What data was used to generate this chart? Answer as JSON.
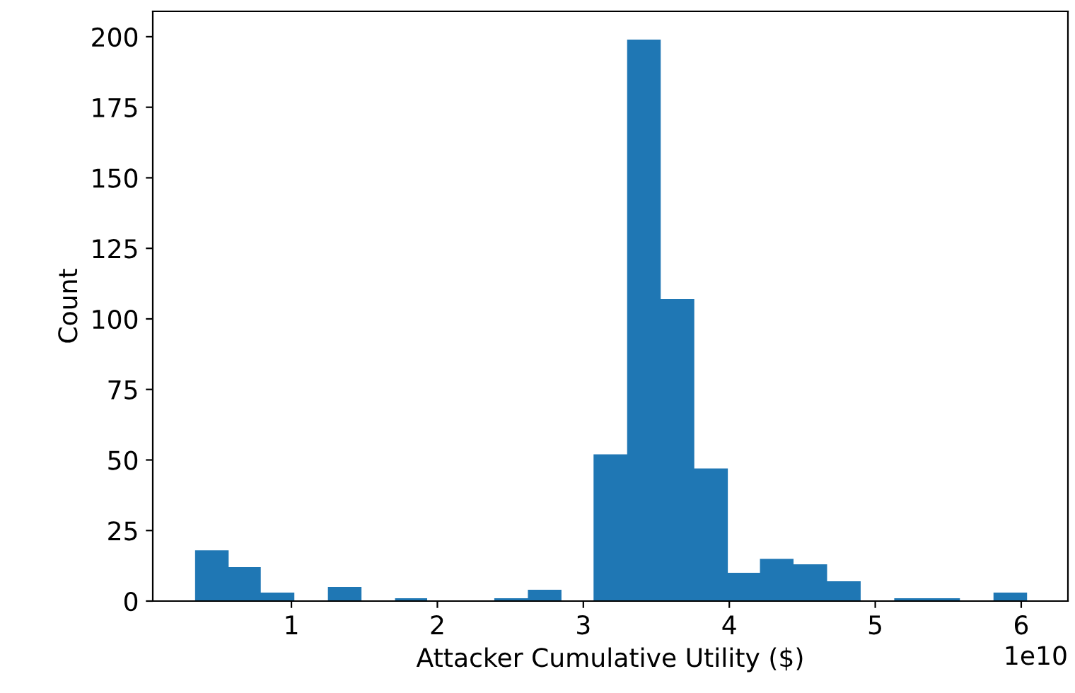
{
  "chart_data": {
    "type": "histogram",
    "xlabel": "Attacker Cumulative Utility ($)",
    "ylabel": "Count",
    "bins": [
      0.34,
      0.57,
      0.79,
      1.02,
      1.25,
      1.48,
      1.71,
      1.93,
      2.16,
      2.39,
      2.62,
      2.85,
      3.07,
      3.3,
      3.53,
      3.76,
      3.99,
      4.21,
      4.44,
      4.67,
      4.9,
      5.13,
      5.35,
      5.58,
      5.81,
      6.04
    ],
    "values": [
      18,
      12,
      3,
      0,
      5,
      0,
      1,
      0,
      0,
      1,
      4,
      0,
      52,
      199,
      107,
      47,
      10,
      15,
      13,
      7,
      0,
      1,
      1,
      0,
      3
    ],
    "color": "#1f77b4",
    "xlim": [
      0.05,
      6.32
    ],
    "xticks": [
      1,
      2,
      3,
      4,
      5,
      6
    ],
    "ylim": [
      0,
      209
    ],
    "yticks": [
      0,
      25,
      50,
      75,
      100,
      125,
      150,
      175,
      200
    ],
    "annotations": [
      "1e10"
    ],
    "grid": false
  }
}
